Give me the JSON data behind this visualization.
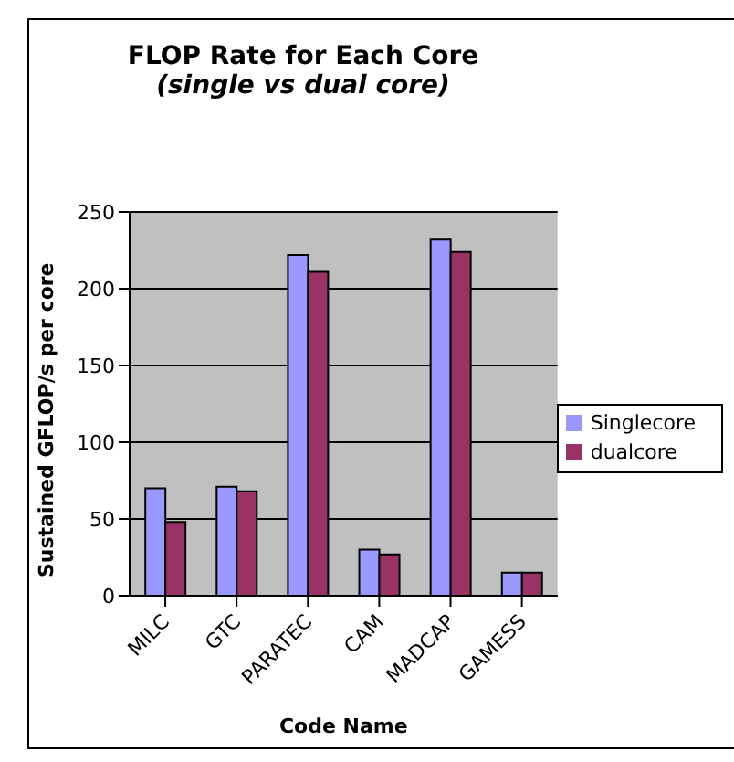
{
  "chart_data": {
    "type": "bar",
    "title": "FLOP Rate for Each Core",
    "subtitle": "(single vs dual core)",
    "xlabel": "Code Name",
    "ylabel": "Sustained GFLOP/s per core",
    "categories": [
      "MILC",
      "GTC",
      "PARATEC",
      "CAM",
      "MADCAP",
      "GAMESS"
    ],
    "series": [
      {
        "name": "Singlecore",
        "color": "#9999ff",
        "values": [
          70,
          71,
          222,
          30,
          232,
          15
        ]
      },
      {
        "name": "dualcore",
        "color": "#993366",
        "values": [
          48,
          68,
          211,
          27,
          224,
          15
        ]
      }
    ],
    "ylim": [
      0,
      250
    ],
    "yticks": [
      0,
      50,
      100,
      150,
      200,
      250
    ],
    "grid": "y",
    "legend": "right"
  }
}
